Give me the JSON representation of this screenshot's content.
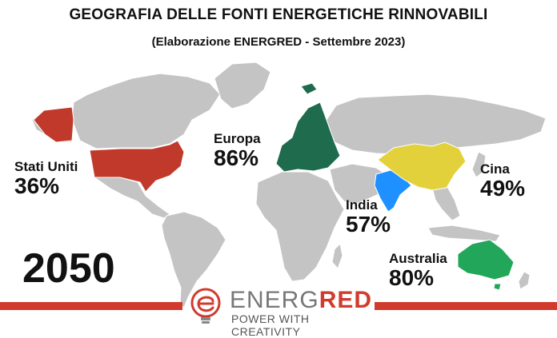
{
  "title": "GEOGRAFIA DELLE FONTI ENERGETICHE RINNOVABILI",
  "subtitle": "(Elaborazione ENERGRED - Settembre 2023)",
  "year": "2050",
  "regions": [
    {
      "name": "Stati Uniti",
      "percent": "36%",
      "color": "#c0392b"
    },
    {
      "name": "Europa",
      "percent": "86%",
      "color": "#1e6b4e"
    },
    {
      "name": "India",
      "percent": "57%",
      "color": "#1e90ff"
    },
    {
      "name": "Cina",
      "percent": "49%",
      "color": "#e3d13c"
    },
    {
      "name": "Australia",
      "percent": "80%",
      "color": "#22a65a"
    }
  ],
  "base_color": "#c4c4c4",
  "brand": {
    "part1": "ENERG",
    "part2": "RED",
    "tagline": "POWER WITH CREATIVITY",
    "accent": "#d13b2e",
    "logo_icon": "lightbulb-e-icon"
  }
}
